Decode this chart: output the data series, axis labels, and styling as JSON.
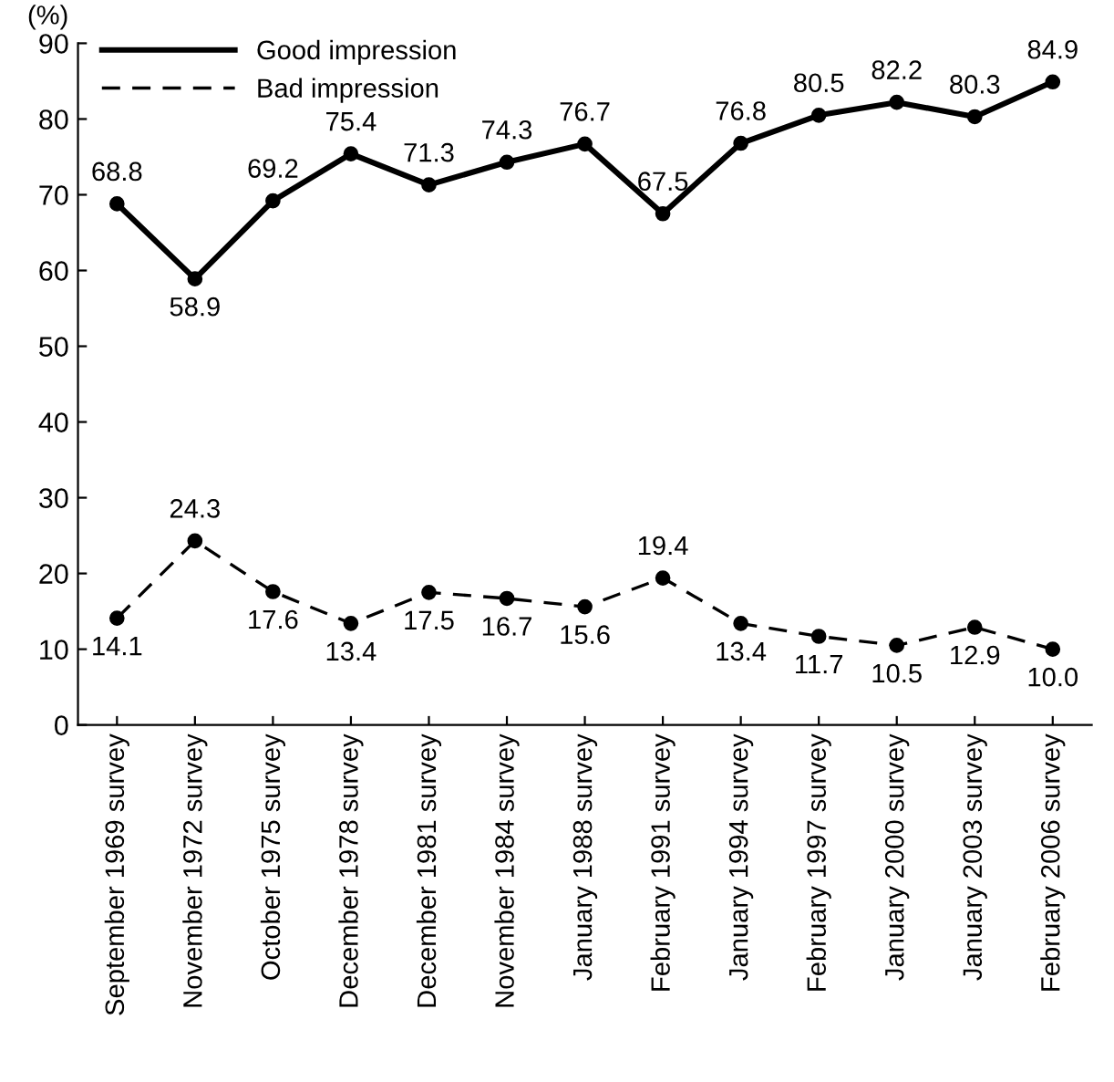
{
  "chart_data": {
    "type": "line",
    "ylabel": "(%)",
    "categories": [
      "September 1969 survey",
      "November 1972 survey",
      "October 1975 survey",
      "December 1978 survey",
      "December 1981 survey",
      "November 1984 survey",
      "January 1988 survey",
      "February 1991 survey",
      "January 1994 survey",
      "February 1997 survey",
      "January 2000 survey",
      "January 2003 survey",
      "February 2006 survey"
    ],
    "series": [
      {
        "name": "Good impression",
        "color": "#000000",
        "line_style": "solid",
        "values": [
          68.8,
          58.9,
          69.2,
          75.4,
          71.3,
          74.3,
          76.7,
          67.5,
          76.8,
          80.5,
          82.2,
          80.3,
          84.9
        ],
        "value_labels": [
          "68.8",
          "58.9",
          "69.2",
          "75.4",
          "71.3",
          "74.3",
          "76.7",
          "67.5",
          "76.8",
          "80.5",
          "82.2",
          "80.3",
          "84.9"
        ]
      },
      {
        "name": "Bad impression",
        "color": "#000000",
        "line_style": "dashed",
        "values": [
          14.1,
          24.3,
          17.6,
          13.4,
          17.5,
          16.7,
          15.6,
          19.4,
          13.4,
          11.7,
          10.5,
          12.9,
          10.0
        ],
        "value_labels": [
          "14.1",
          "24.3",
          "17.6",
          "13.4",
          "17.5",
          "16.7",
          "15.6",
          "19.4",
          "13.4",
          "11.7",
          "10.5",
          "12.9",
          "10.0"
        ]
      }
    ],
    "ylim": [
      0,
      90
    ],
    "yticks": [
      0,
      10,
      20,
      30,
      40,
      50,
      60,
      70,
      80,
      90
    ],
    "marker": "circle",
    "legend": "top left",
    "grid": false
  }
}
